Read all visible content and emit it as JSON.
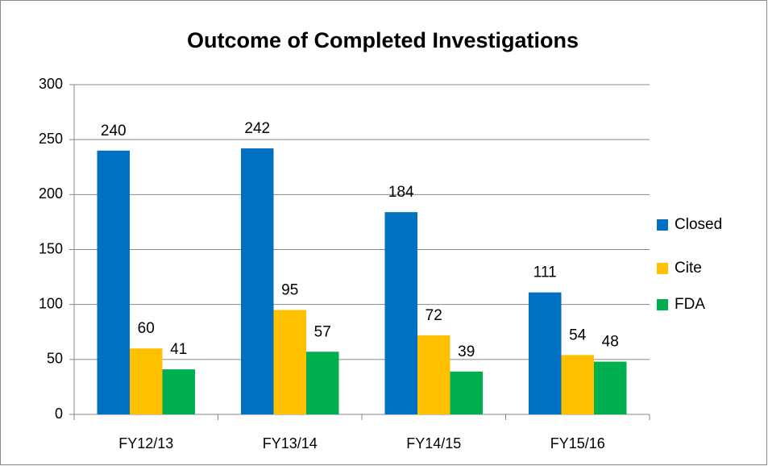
{
  "chart_data": {
    "type": "bar",
    "title": "Outcome of Completed Investigations",
    "categories": [
      "FY12/13",
      "FY13/14",
      "FY14/15",
      "FY15/16"
    ],
    "series": [
      {
        "name": "Closed",
        "color": "#0070C0",
        "values": [
          240,
          242,
          184,
          111
        ]
      },
      {
        "name": "Cite",
        "color": "#FFC000",
        "values": [
          60,
          95,
          72,
          54
        ]
      },
      {
        "name": "FDA",
        "color": "#00B050",
        "values": [
          41,
          57,
          39,
          48
        ]
      }
    ],
    "ylim": [
      0,
      300
    ],
    "yticks": [
      0,
      50,
      100,
      150,
      200,
      250,
      300
    ],
    "grid": true,
    "legend": "right"
  }
}
